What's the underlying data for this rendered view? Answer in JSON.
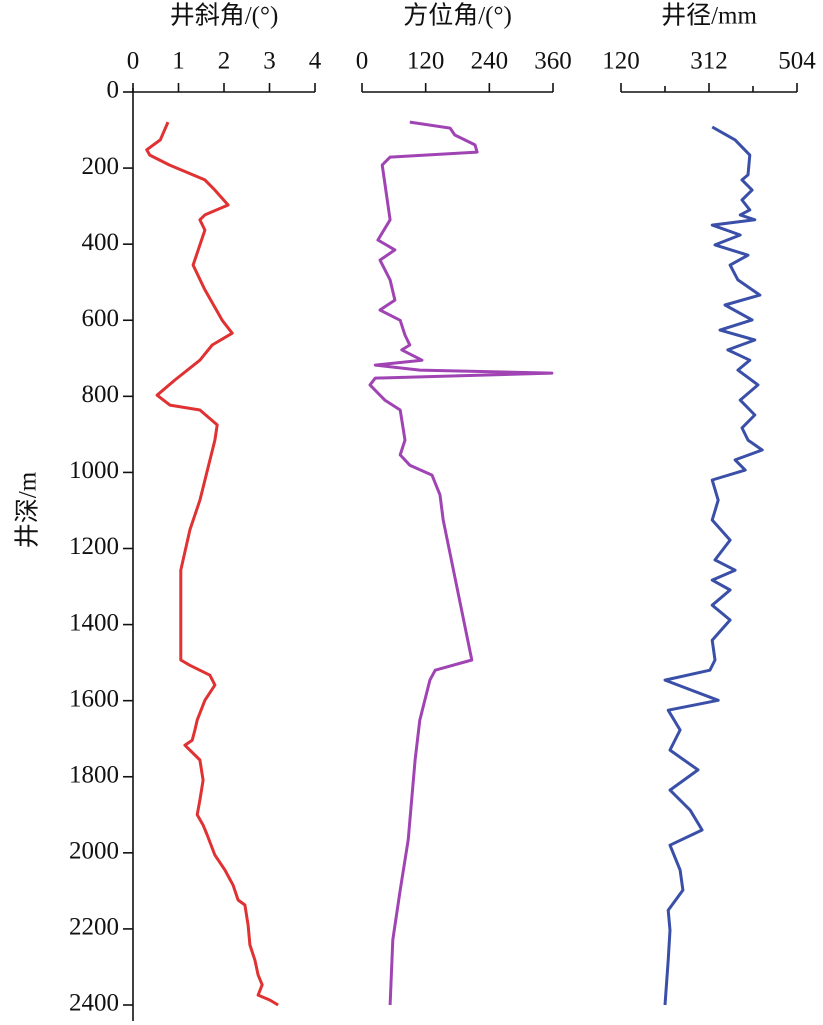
{
  "chart_data": {
    "type": "line",
    "ylabel": "井深/m",
    "ylim": [
      0,
      2400
    ],
    "y_inverted": true,
    "yticks": [
      0,
      200,
      400,
      600,
      800,
      1000,
      1200,
      1400,
      1600,
      1800,
      2000,
      2200,
      2400
    ],
    "tracks": [
      {
        "xlabel": "井斜角/(°)",
        "xlim": [
          0,
          4
        ],
        "xticks": [
          0,
          1,
          2,
          3,
          4
        ],
        "color": "#e03232",
        "depth": [
          79,
          126,
          152,
          166,
          192,
          231,
          258,
          297,
          323,
          336,
          363,
          455,
          520,
          600,
          634,
          665,
          705,
          757,
          797,
          823,
          836,
          875,
          915,
          1073,
          1151,
          1230,
          1257,
          1493,
          1507,
          1533,
          1559,
          1599,
          1651,
          1677,
          1704,
          1717,
          1756,
          1809,
          1861,
          1900,
          1927,
          1953,
          2006,
          2045,
          2085,
          2124,
          2137,
          2190,
          2242,
          2282,
          2321,
          2347,
          2374,
          2387,
          2400
        ],
        "values": [
          0.77,
          0.6,
          0.3,
          0.37,
          0.8,
          1.58,
          1.8,
          2.09,
          1.58,
          1.47,
          1.58,
          1.32,
          1.58,
          1.96,
          2.18,
          1.74,
          1.47,
          0.92,
          0.53,
          0.81,
          1.47,
          1.85,
          1.8,
          1.47,
          1.25,
          1.1,
          1.05,
          1.05,
          1.25,
          1.69,
          1.8,
          1.58,
          1.41,
          1.36,
          1.3,
          1.14,
          1.47,
          1.54,
          1.47,
          1.41,
          1.54,
          1.63,
          1.8,
          2.02,
          2.2,
          2.31,
          2.46,
          2.53,
          2.57,
          2.68,
          2.75,
          2.84,
          2.75,
          3.01,
          3.19
        ]
      },
      {
        "xlabel": "方位角/(°)",
        "xlim": [
          0,
          360
        ],
        "xticks": [
          0,
          120,
          240,
          360
        ],
        "color": "#a044b4",
        "depth": [
          79,
          95,
          113,
          139,
          158,
          171,
          192,
          336,
          389,
          415,
          442,
          494,
          547,
          573,
          600,
          639,
          665,
          678,
          705,
          718,
          731,
          739,
          752,
          770,
          810,
          836,
          915,
          954,
          981,
          1007,
          1059,
          1125,
          1493,
          1520,
          1546,
          1651,
          1756,
          1966,
          2098,
          2229,
          2400
        ],
        "values": [
          90,
          166,
          175,
          213,
          217,
          53,
          38,
          53,
          30,
          62,
          34,
          53,
          62,
          34,
          72,
          81,
          90,
          75,
          113,
          25,
          109,
          358,
          25,
          15,
          43,
          72,
          81,
          72,
          90,
          132,
          147,
          153,
          207,
          138,
          128,
          109,
          100,
          87,
          72,
          58,
          53
        ]
      },
      {
        "xlabel": "井径/mm",
        "xlim": [
          120,
          504
        ],
        "xticks": [
          120,
          312,
          504
        ],
        "xminor": [
          216,
          408
        ],
        "color": "#3a4fa8",
        "depth": [
          92,
          126,
          166,
          218,
          231,
          258,
          284,
          310,
          323,
          336,
          350,
          376,
          402,
          429,
          455,
          494,
          534,
          560,
          599,
          626,
          652,
          678,
          705,
          731,
          770,
          810,
          849,
          883,
          915,
          941,
          967,
          994,
          1020,
          1073,
          1125,
          1178,
          1230,
          1257,
          1283,
          1309,
          1349,
          1388,
          1441,
          1493,
          1520,
          1546,
          1599,
          1625,
          1677,
          1730,
          1782,
          1835,
          1888,
          1940,
          1980,
          2045,
          2098,
          2151,
          2203,
          2282,
          2400
        ],
        "values": [
          319,
          369,
          401,
          397,
          384,
          406,
          384,
          401,
          380,
          412,
          319,
          380,
          325,
          397,
          358,
          375,
          423,
          347,
          406,
          336,
          412,
          353,
          401,
          375,
          419,
          380,
          412,
          384,
          397,
          428,
          369,
          391,
          319,
          332,
          319,
          358,
          325,
          369,
          319,
          358,
          319,
          358,
          319,
          325,
          314,
          216,
          332,
          223,
          249,
          227,
          288,
          227,
          271,
          297,
          227,
          249,
          255,
          223,
          227,
          223,
          216
        ]
      }
    ]
  }
}
